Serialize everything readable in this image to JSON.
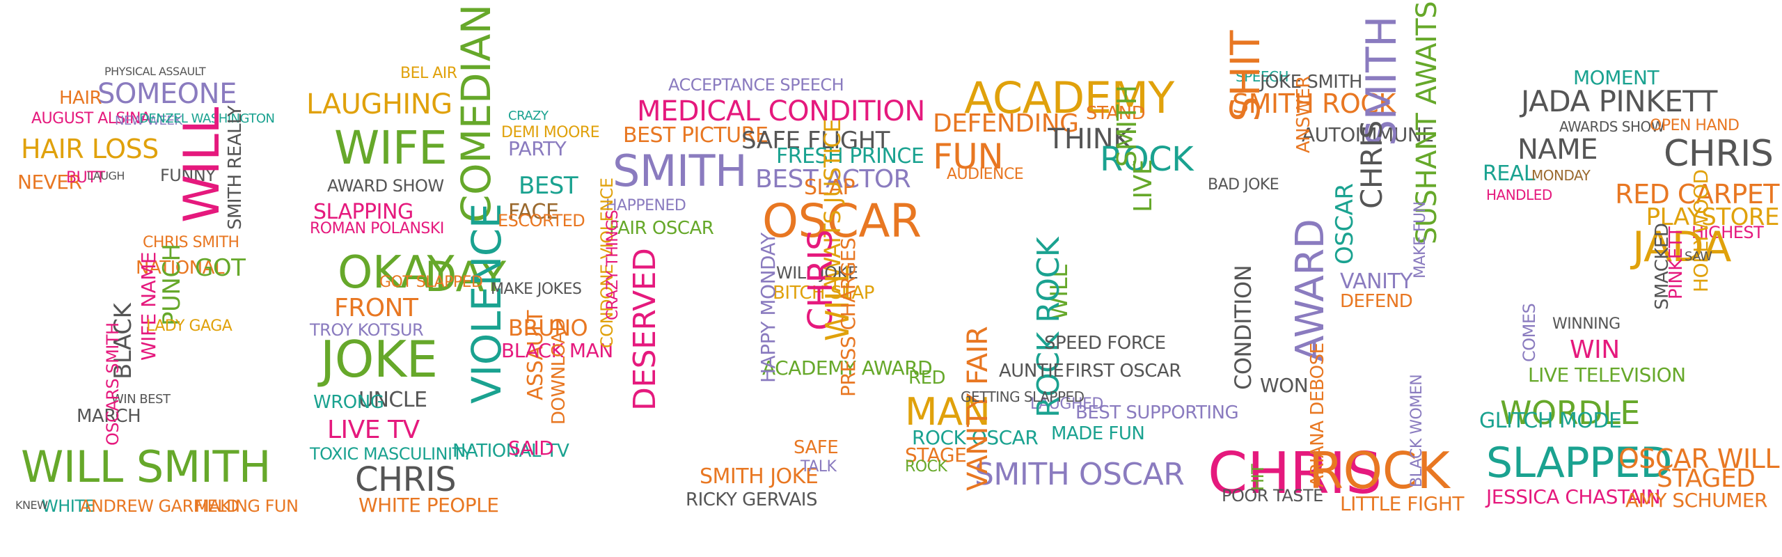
{
  "colors": {
    "background": "#ffffff",
    "pink": "#e5197d",
    "green": "#66a82a",
    "orange": "#e87722",
    "yellow": "#e0a10b",
    "purple": "#8a7bbf",
    "teal": "#1aa290",
    "grey": "#555555",
    "brown": "#9b6a2f"
  },
  "digits": [
    {
      "glyph": "2",
      "words": [
        {
          "text": "WILL SMITH",
          "color": "green"
        },
        {
          "text": "SOMEONE",
          "color": "purple"
        },
        {
          "text": "HAIR LOSS",
          "color": "yellow"
        },
        {
          "text": "HAIR",
          "color": "orange"
        },
        {
          "text": "AUGUST ALSINA",
          "color": "pink"
        },
        {
          "text": "NEW WEEK",
          "color": "purple"
        },
        {
          "text": "DENZEL WASHINGTON",
          "color": "teal"
        },
        {
          "text": "FUNNY",
          "color": "grey"
        },
        {
          "text": "NEVER",
          "color": "orange"
        },
        {
          "text": "BUTT",
          "color": "pink"
        },
        {
          "text": "WILL",
          "color": "pink"
        },
        {
          "text": "SMITH REALLY",
          "color": "grey"
        },
        {
          "text": "CHRIS SMITH",
          "color": "orange"
        },
        {
          "text": "NATIONAL",
          "color": "orange"
        },
        {
          "text": "GOT",
          "color": "green"
        },
        {
          "text": "WIFE NAME",
          "color": "pink"
        },
        {
          "text": "PUNCH",
          "color": "green"
        },
        {
          "text": "BLACK",
          "color": "grey"
        },
        {
          "text": "LADY GAGA",
          "color": "yellow"
        },
        {
          "text": "MARCH",
          "color": "grey"
        },
        {
          "text": "WIN BEST",
          "color": "grey"
        },
        {
          "text": "OSCARS SMITH",
          "color": "pink"
        },
        {
          "text": "WHITE",
          "color": "teal"
        },
        {
          "text": "ANDREW GARFIELD",
          "color": "orange"
        },
        {
          "text": "MAKING FUN",
          "color": "orange"
        },
        {
          "text": "PHYSICAL ASSAULT",
          "color": "grey"
        },
        {
          "text": "LAUGH",
          "color": "grey"
        },
        {
          "text": "KNEW",
          "color": "grey"
        }
      ]
    },
    {
      "glyph": "0",
      "words": [
        {
          "text": "LAUGHING",
          "color": "yellow"
        },
        {
          "text": "BEL AIR",
          "color": "yellow"
        },
        {
          "text": "WIFE",
          "color": "green"
        },
        {
          "text": "COMEDIAN",
          "color": "green"
        },
        {
          "text": "AWARD SHOW",
          "color": "grey"
        },
        {
          "text": "SLAPPING",
          "color": "pink"
        },
        {
          "text": "ROMAN POLANSKI",
          "color": "pink"
        },
        {
          "text": "PARTY",
          "color": "purple"
        },
        {
          "text": "BEST",
          "color": "teal"
        },
        {
          "text": "OKAY",
          "color": "green"
        },
        {
          "text": "DAY",
          "color": "green"
        },
        {
          "text": "FRONT",
          "color": "orange"
        },
        {
          "text": "TROY KOTSUR",
          "color": "purple"
        },
        {
          "text": "VIOLENCE",
          "color": "teal"
        },
        {
          "text": "JOKE",
          "color": "green"
        },
        {
          "text": "UNCLE",
          "color": "grey"
        },
        {
          "text": "WRONG",
          "color": "teal"
        },
        {
          "text": "LIVE TV",
          "color": "pink"
        },
        {
          "text": "TOXIC MASCULINITY",
          "color": "teal"
        },
        {
          "text": "CHRIS",
          "color": "grey"
        },
        {
          "text": "WHITE PEOPLE",
          "color": "orange"
        },
        {
          "text": "ASSAULT",
          "color": "orange"
        },
        {
          "text": "BRUNO",
          "color": "orange"
        },
        {
          "text": "BLACK MAN",
          "color": "pink"
        },
        {
          "text": "DOWNLOAD",
          "color": "orange"
        },
        {
          "text": "NATIONAL TV",
          "color": "teal"
        },
        {
          "text": "SAID",
          "color": "pink"
        },
        {
          "text": "FACE",
          "color": "brown"
        },
        {
          "text": "ESCORTED",
          "color": "orange"
        },
        {
          "text": "GOT SLAPPED",
          "color": "orange"
        },
        {
          "text": "MAKE JOKES",
          "color": "grey"
        },
        {
          "text": "DEMI MOORE",
          "color": "yellow"
        },
        {
          "text": "CRAZY",
          "color": "teal"
        }
      ]
    },
    {
      "glyph": "2",
      "words": [
        {
          "text": "ACCEPTANCE SPEECH",
          "color": "purple"
        },
        {
          "text": "MEDICAL CONDITION",
          "color": "pink"
        },
        {
          "text": "BEST PICTURE",
          "color": "orange"
        },
        {
          "text": "SAFE FLIGHT",
          "color": "grey"
        },
        {
          "text": "SMITH",
          "color": "purple"
        },
        {
          "text": "FRESH PRINCE",
          "color": "teal"
        },
        {
          "text": "BEST ACTOR",
          "color": "purple"
        },
        {
          "text": "HAPPENED",
          "color": "purple"
        },
        {
          "text": "FAIR OSCAR",
          "color": "green"
        },
        {
          "text": "OSCAR",
          "color": "orange"
        },
        {
          "text": "SLAP",
          "color": "orange"
        },
        {
          "text": "AWAITS JUSTICE",
          "color": "yellow"
        },
        {
          "text": "WILL JOKE",
          "color": "grey"
        },
        {
          "text": "BITCH SLAP",
          "color": "yellow"
        },
        {
          "text": "CHRIS",
          "color": "pink"
        },
        {
          "text": "WILL",
          "color": "yellow"
        },
        {
          "text": "ACADEMY AWARD",
          "color": "green"
        },
        {
          "text": "HAPPY MONDAY",
          "color": "purple"
        },
        {
          "text": "CONDONE VIOLENCE",
          "color": "yellow"
        },
        {
          "text": "DESERVED",
          "color": "pink"
        },
        {
          "text": "PRESS CHARGES",
          "color": "orange"
        },
        {
          "text": "SMITH JOKE",
          "color": "orange"
        },
        {
          "text": "RICKY GERVAIS",
          "color": "grey"
        },
        {
          "text": "SAFE",
          "color": "orange"
        },
        {
          "text": "TALK",
          "color": "purple"
        },
        {
          "text": "CRAZY THINGS",
          "color": "pink"
        }
      ]
    },
    {
      "glyph": "2",
      "words": [
        {
          "text": "ACADEMY",
          "color": "yellow"
        },
        {
          "text": "DEFENDING",
          "color": "orange"
        },
        {
          "text": "FUN",
          "color": "orange"
        },
        {
          "text": "AUDIENCE",
          "color": "orange"
        },
        {
          "text": "THINK",
          "color": "grey"
        },
        {
          "text": "STAND",
          "color": "orange"
        },
        {
          "text": "ROCK",
          "color": "teal"
        },
        {
          "text": "SMITH",
          "color": "green"
        },
        {
          "text": "LIVE",
          "color": "green"
        },
        {
          "text": "RED",
          "color": "green"
        },
        {
          "text": "MAN",
          "color": "yellow"
        },
        {
          "text": "ROCK OSCAR",
          "color": "teal"
        },
        {
          "text": "STAGE",
          "color": "orange"
        },
        {
          "text": "SMITH OSCAR",
          "color": "purple"
        },
        {
          "text": "ROCK",
          "color": "green"
        },
        {
          "text": "WILL",
          "color": "green"
        },
        {
          "text": "VANITY FAIR",
          "color": "orange"
        },
        {
          "text": "LAUGHED",
          "color": "purple"
        },
        {
          "text": "ROCK ROCK",
          "color": "teal"
        },
        {
          "text": "MADE FUN",
          "color": "teal"
        },
        {
          "text": "BEST SUPPORTING",
          "color": "purple"
        },
        {
          "text": "SPEED FORCE",
          "color": "grey"
        },
        {
          "text": "AUNTIE",
          "color": "grey"
        },
        {
          "text": "GETTING SLAPPED",
          "color": "grey"
        },
        {
          "text": "FIRST OSCAR",
          "color": "grey"
        }
      ]
    },
    {
      "glyph": "2",
      "words": [
        {
          "text": "SPEECH",
          "color": "teal"
        },
        {
          "text": "JOKE SMITH",
          "color": "grey"
        },
        {
          "text": "SMITH ROCK",
          "color": "orange"
        },
        {
          "text": "SHIT",
          "color": "orange"
        },
        {
          "text": "AUTOIMMUNE",
          "color": "grey"
        },
        {
          "text": "SMITH",
          "color": "purple"
        },
        {
          "text": "SUSHANT AWAITS",
          "color": "green"
        },
        {
          "text": "BAD JOKE",
          "color": "grey"
        },
        {
          "text": "ANSWER",
          "color": "orange"
        },
        {
          "text": "OSCAR",
          "color": "teal"
        },
        {
          "text": "CHRIS",
          "color": "grey"
        },
        {
          "text": "VANITY",
          "color": "purple"
        },
        {
          "text": "DEFEND",
          "color": "orange"
        },
        {
          "text": "CONDITION",
          "color": "grey"
        },
        {
          "text": "AWARD",
          "color": "purple"
        },
        {
          "text": "WON",
          "color": "grey"
        },
        {
          "text": "CHRIS",
          "color": "pink"
        },
        {
          "text": "ROCK",
          "color": "orange"
        },
        {
          "text": "ARIANA DEBOSE",
          "color": "orange"
        },
        {
          "text": "LITTLE FIGHT",
          "color": "orange"
        },
        {
          "text": "BLACK WOMEN",
          "color": "purple"
        },
        {
          "text": "POOR TASTE",
          "color": "grey"
        },
        {
          "text": "MAKE FUN",
          "color": "purple"
        },
        {
          "text": "HIT",
          "color": "green"
        }
      ]
    },
    {
      "glyph": "2",
      "words": [
        {
          "text": "MOMENT",
          "color": "teal"
        },
        {
          "text": "JADA PINKETT",
          "color": "grey"
        },
        {
          "text": "AWARDS SHOW",
          "color": "grey"
        },
        {
          "text": "OPEN HAND",
          "color": "orange"
        },
        {
          "text": "NAME",
          "color": "grey"
        },
        {
          "text": "CHRIS",
          "color": "grey"
        },
        {
          "text": "REAL",
          "color": "teal"
        },
        {
          "text": "MONDAY",
          "color": "brown"
        },
        {
          "text": "HANDLED",
          "color": "pink"
        },
        {
          "text": "RED CARPET",
          "color": "orange"
        },
        {
          "text": "PLAYSTORE",
          "color": "yellow"
        },
        {
          "text": "HIGHEST",
          "color": "pink"
        },
        {
          "text": "JADA",
          "color": "yellow"
        },
        {
          "text": "PINKETT",
          "color": "pink"
        },
        {
          "text": "HOLLYWOOD",
          "color": "yellow"
        },
        {
          "text": "WIN",
          "color": "pink"
        },
        {
          "text": "WINNING",
          "color": "grey"
        },
        {
          "text": "COMES",
          "color": "purple"
        },
        {
          "text": "LIVE TELEVISION",
          "color": "green"
        },
        {
          "text": "WORDLE",
          "color": "green"
        },
        {
          "text": "GLITCH MODE",
          "color": "teal"
        },
        {
          "text": "SLAPPED",
          "color": "teal"
        },
        {
          "text": "OSCAR WILL",
          "color": "orange"
        },
        {
          "text": "STAGED",
          "color": "orange"
        },
        {
          "text": "JESSICA CHASTAIN",
          "color": "pink"
        },
        {
          "text": "AMY SCHUMER",
          "color": "orange"
        },
        {
          "text": "SMACKED",
          "color": "grey"
        },
        {
          "text": "SAW",
          "color": "grey"
        }
      ]
    }
  ]
}
